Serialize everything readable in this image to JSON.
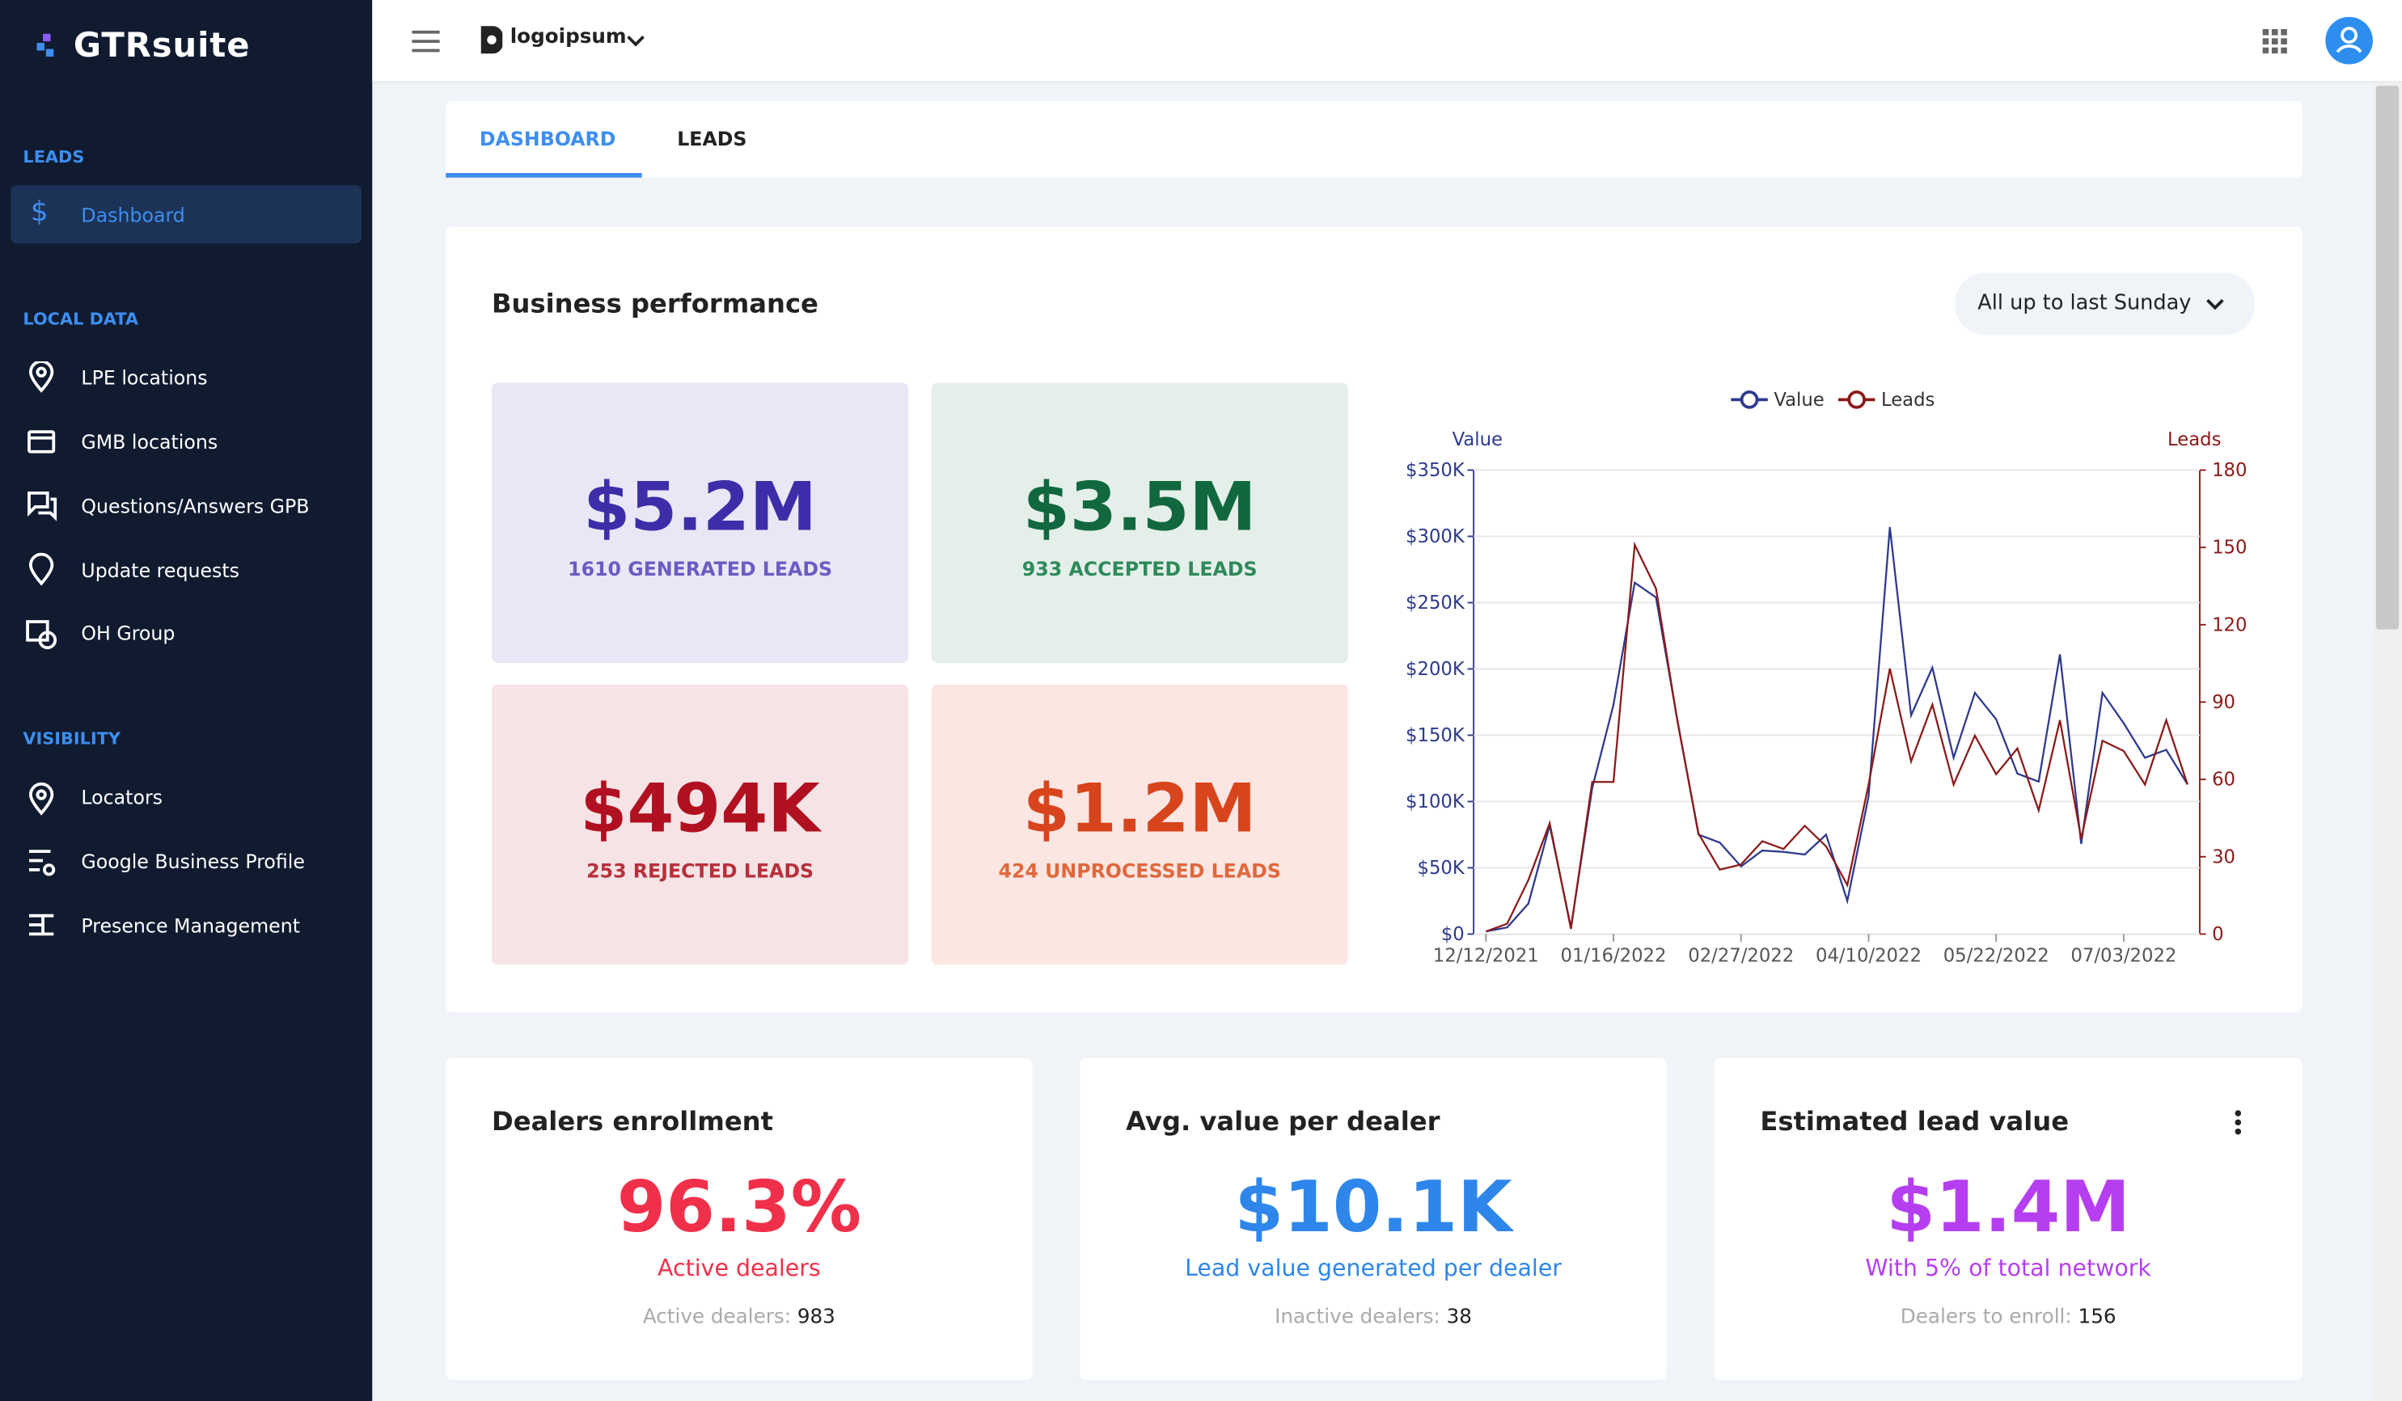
{
  "brand": "GTRsuite",
  "header": {
    "logo": "logoipsum"
  },
  "sidebar": {
    "sections": [
      {
        "title": "LEADS",
        "items": [
          "Dashboard"
        ]
      },
      {
        "title": "LOCAL DATA",
        "items": [
          "LPE locations",
          "GMB locations",
          "Questions/Answers GPB",
          "Update requests",
          "OH Group"
        ]
      },
      {
        "title": "VISIBILITY",
        "items": [
          "Locators",
          "Google Business Profile",
          "Presence Management"
        ]
      }
    ]
  },
  "tabs": [
    "DASHBOARD",
    "LEADS"
  ],
  "performance": {
    "title": "Business performance",
    "filter": "All up to last Sunday",
    "kpis": [
      {
        "value": "$5.2M",
        "label": "1610 GENERATED LEADS"
      },
      {
        "value": "$3.5M",
        "label": "933 ACCEPTED LEADS"
      },
      {
        "value": "$494K",
        "label": "253 REJECTED LEADS"
      },
      {
        "value": "$1.2M",
        "label": "424 UNPROCESSED LEADS"
      }
    ]
  },
  "cards": [
    {
      "title": "Dealers enrollment",
      "value": "96.3%",
      "caption": "Active dealers",
      "foot_label": "Active dealers:",
      "foot_value": "983"
    },
    {
      "title": "Avg. value per dealer",
      "value": "$10.1K",
      "caption": "Lead value generated per dealer",
      "foot_label": "Inactive dealers:",
      "foot_value": "38"
    },
    {
      "title": "Estimated lead value",
      "value": "$1.4M",
      "caption": "With 5% of total network",
      "foot_label": "Dealers to enroll:",
      "foot_value": "156"
    }
  ],
  "chart_data": {
    "type": "line",
    "y_label": "Value",
    "y2_label": "Leads",
    "categories": [
      "12/12/2021",
      null,
      null,
      null,
      null,
      null,
      "01/16/2022",
      null,
      null,
      null,
      null,
      null,
      "02/27/2022",
      null,
      null,
      null,
      null,
      null,
      "04/10/2022",
      null,
      null,
      null,
      null,
      null,
      "05/22/2022",
      null,
      null,
      null,
      null,
      null,
      "07/03/2022",
      null,
      null,
      null
    ],
    "series": [
      {
        "name": "Value",
        "color": "#2e3a8c",
        "axis": "y",
        "values": [
          2000,
          5000,
          23000,
          82000,
          5000,
          110000,
          173000,
          265000,
          254000,
          162000,
          75000,
          69000,
          51000,
          63000,
          62000,
          60000,
          75000,
          25000,
          104000,
          307000,
          165000,
          201000,
          133000,
          182000,
          162000,
          121000,
          115000,
          211000,
          68000,
          182000,
          159000,
          133000,
          139000,
          113000
        ]
      },
      {
        "name": "Leads",
        "color": "#8b1a1a",
        "axis": "y2",
        "values": [
          1,
          4,
          21,
          43,
          2,
          59,
          59,
          151,
          134,
          83,
          39,
          25,
          27,
          36,
          33,
          42,
          34,
          19,
          58,
          103,
          67,
          89,
          58,
          77,
          62,
          72,
          48,
          83,
          37,
          75,
          71,
          58,
          83,
          58
        ]
      }
    ],
    "ylim": [
      0,
      350000
    ],
    "yticks": [
      {
        "value": 0,
        "label": "$0"
      },
      {
        "value": 50000,
        "label": "$50K"
      },
      {
        "value": 100000,
        "label": "$100K"
      },
      {
        "value": 150000,
        "label": "$150K"
      },
      {
        "value": 200000,
        "label": "$200K"
      },
      {
        "value": 250000,
        "label": "$250K"
      },
      {
        "value": 300000,
        "label": "$300K"
      },
      {
        "value": 350000,
        "label": "$350K"
      }
    ],
    "y2lim": [
      0,
      180
    ],
    "y2ticks": [
      0,
      30,
      60,
      90,
      120,
      150,
      180
    ],
    "grid": true,
    "legend": "top"
  }
}
